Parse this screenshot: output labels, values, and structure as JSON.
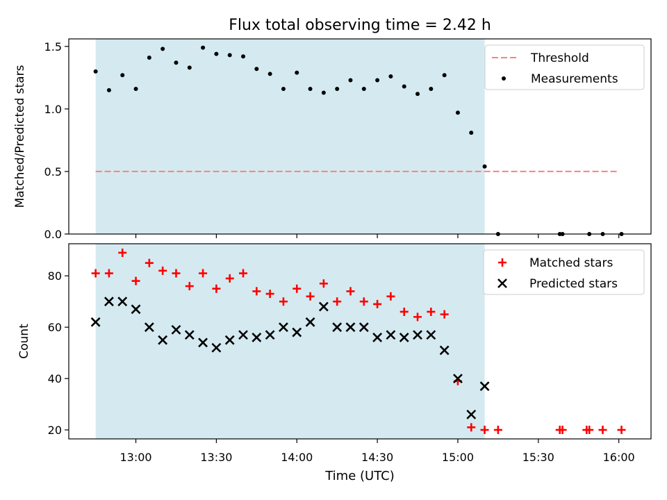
{
  "figure": {
    "title": "Flux total observing time = 2.42 h",
    "xlabel": "Time (UTC)",
    "xticks": [
      {
        "label": "13:00",
        "t": "13:00"
      },
      {
        "label": "13:30",
        "t": "13:30"
      },
      {
        "label": "14:00",
        "t": "14:00"
      },
      {
        "label": "14:30",
        "t": "14:30"
      },
      {
        "label": "15:00",
        "t": "15:00"
      },
      {
        "label": "15:30",
        "t": "15:30"
      },
      {
        "label": "16:00",
        "t": "16:00"
      }
    ],
    "xlim": [
      "12:35",
      "16:12"
    ],
    "shaded_span": [
      "12:45",
      "15:10"
    ],
    "shade_color": "#d4eaf0"
  },
  "chart_data": [
    {
      "type": "scatter",
      "ylabel": "Matched/Predicted stars",
      "ylim": [
        0,
        1.56
      ],
      "yticks": [
        "0.0",
        "0.5",
        "1.0",
        "1.5"
      ],
      "legend_position": "top-right",
      "threshold": {
        "name": "Threshold",
        "value": 0.5,
        "x": [
          "12:45",
          "16:00"
        ],
        "color": "#ff7f7f"
      },
      "series": [
        {
          "name": "Measurements",
          "color": "#000000",
          "marker": "dot",
          "x": [
            "12:45",
            "12:50",
            "12:55",
            "13:00",
            "13:05",
            "13:10",
            "13:15",
            "13:20",
            "13:25",
            "13:30",
            "13:35",
            "13:40",
            "13:45",
            "13:50",
            "13:55",
            "14:00",
            "14:05",
            "14:10",
            "14:15",
            "14:20",
            "14:25",
            "14:30",
            "14:35",
            "14:40",
            "14:45",
            "14:50",
            "14:55",
            "15:00",
            "15:05",
            "15:10",
            "15:15",
            "15:38",
            "15:39",
            "15:49",
            "15:54",
            "16:01"
          ],
          "y": [
            1.3,
            1.15,
            1.27,
            1.16,
            1.41,
            1.48,
            1.37,
            1.33,
            1.49,
            1.44,
            1.43,
            1.42,
            1.32,
            1.28,
            1.16,
            1.29,
            1.16,
            1.13,
            1.16,
            1.23,
            1.16,
            1.23,
            1.26,
            1.18,
            1.12,
            1.16,
            1.27,
            0.97,
            0.81,
            0.54,
            0,
            0,
            0,
            0,
            0,
            0
          ]
        }
      ]
    },
    {
      "type": "scatter",
      "ylabel": "Count",
      "ylim": [
        16.5,
        92.5
      ],
      "yticks": [
        "20",
        "40",
        "60",
        "80"
      ],
      "legend_position": "top-right",
      "series": [
        {
          "name": "Matched stars",
          "color": "#ff0000",
          "marker": "plus",
          "x": [
            "12:45",
            "12:50",
            "12:55",
            "13:00",
            "13:05",
            "13:10",
            "13:15",
            "13:20",
            "13:25",
            "13:30",
            "13:35",
            "13:40",
            "13:45",
            "13:50",
            "13:55",
            "14:00",
            "14:05",
            "14:10",
            "14:15",
            "14:20",
            "14:25",
            "14:30",
            "14:35",
            "14:40",
            "14:45",
            "14:50",
            "14:55",
            "15:00",
            "15:05",
            "15:10",
            "15:15",
            "15:38",
            "15:39",
            "15:48",
            "15:49",
            "15:54",
            "16:01"
          ],
          "y": [
            81,
            81,
            89,
            78,
            85,
            82,
            81,
            76,
            81,
            75,
            79,
            81,
            74,
            73,
            70,
            75,
            72,
            77,
            70,
            74,
            70,
            69,
            72,
            66,
            64,
            66,
            65,
            39,
            21,
            20,
            20,
            20,
            20,
            20,
            20,
            20,
            20
          ]
        },
        {
          "name": "Predicted stars",
          "color": "#000000",
          "marker": "x",
          "x": [
            "12:45",
            "12:50",
            "12:55",
            "13:00",
            "13:05",
            "13:10",
            "13:15",
            "13:20",
            "13:25",
            "13:30",
            "13:35",
            "13:40",
            "13:45",
            "13:50",
            "13:55",
            "14:00",
            "14:05",
            "14:10",
            "14:15",
            "14:20",
            "14:25",
            "14:30",
            "14:35",
            "14:40",
            "14:45",
            "14:50",
            "14:55",
            "15:00",
            "15:05",
            "15:10"
          ],
          "y": [
            62,
            70,
            70,
            67,
            60,
            55,
            59,
            57,
            54,
            52,
            55,
            57,
            56,
            57,
            60,
            58,
            62,
            68,
            60,
            60,
            60,
            56,
            57,
            56,
            57,
            57,
            51,
            40,
            26,
            37
          ]
        }
      ]
    }
  ]
}
